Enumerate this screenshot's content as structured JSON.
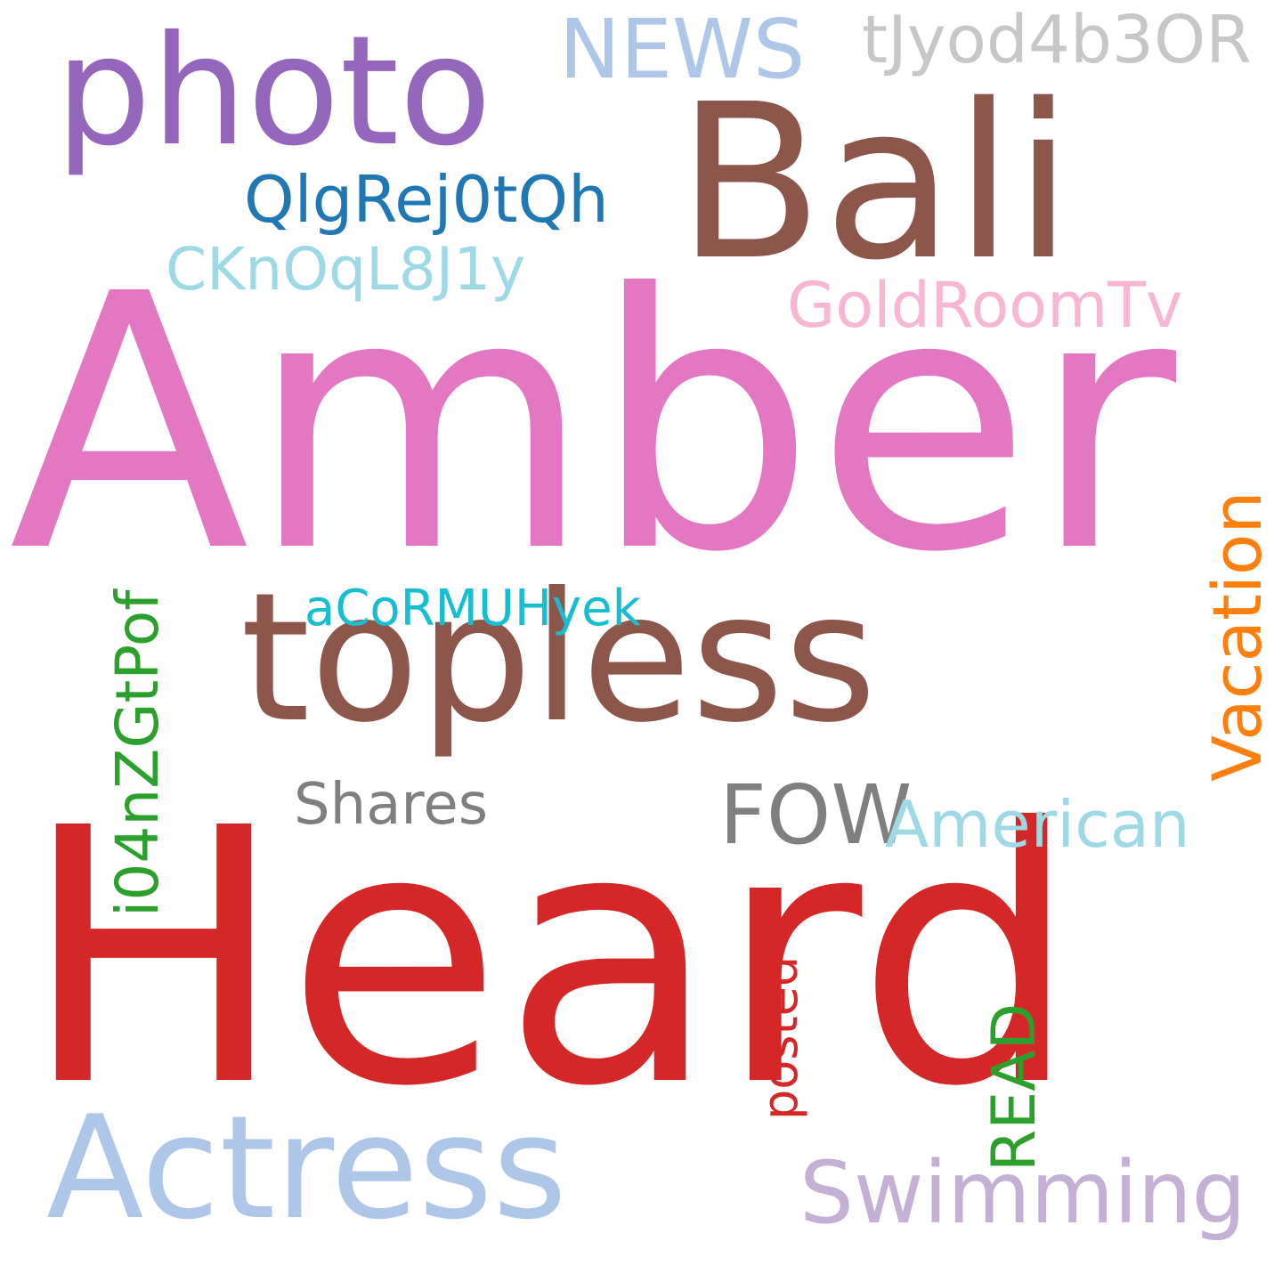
{
  "words": {
    "amber": {
      "text": "Amber",
      "color": "#e377c2"
    },
    "heard": {
      "text": "Heard",
      "color": "#d62728"
    },
    "topless": {
      "text": "topless",
      "color": "#8c564b"
    },
    "bali": {
      "text": "Bali",
      "color": "#8c564b"
    },
    "photo": {
      "text": "photo",
      "color": "#9467bd"
    },
    "actress": {
      "text": "Actress",
      "color": "#aec7e8"
    },
    "swimming": {
      "text": "Swimming",
      "color": "#c5b0d5"
    },
    "news": {
      "text": "NEWS",
      "color": "#aec7e8"
    },
    "tjyod": {
      "text": "tJyod4b3OR",
      "color": "#c7c7c7"
    },
    "qlgrej": {
      "text": "QlgRej0tQh",
      "color": "#1f77b4"
    },
    "ckn": {
      "text": "CKnOqL8J1y",
      "color": "#9edae5"
    },
    "goldroom": {
      "text": "GoldRoomTv",
      "color": "#f7b6d2"
    },
    "acor": {
      "text": "aCoRMUHyek",
      "color": "#17becf"
    },
    "i04": {
      "text": "i04nZGtPof",
      "color": "#2ca02c"
    },
    "vacation": {
      "text": "Vacation",
      "color": "#ff7f0e"
    },
    "shares": {
      "text": "Shares",
      "color": "#7f7f7f"
    },
    "fow": {
      "text": "FOW",
      "color": "#7f7f7f"
    },
    "american": {
      "text": "American",
      "color": "#9edae5"
    },
    "posted": {
      "text": "posted",
      "color": "#d62728"
    },
    "read": {
      "text": "READ",
      "color": "#2ca02c"
    }
  }
}
